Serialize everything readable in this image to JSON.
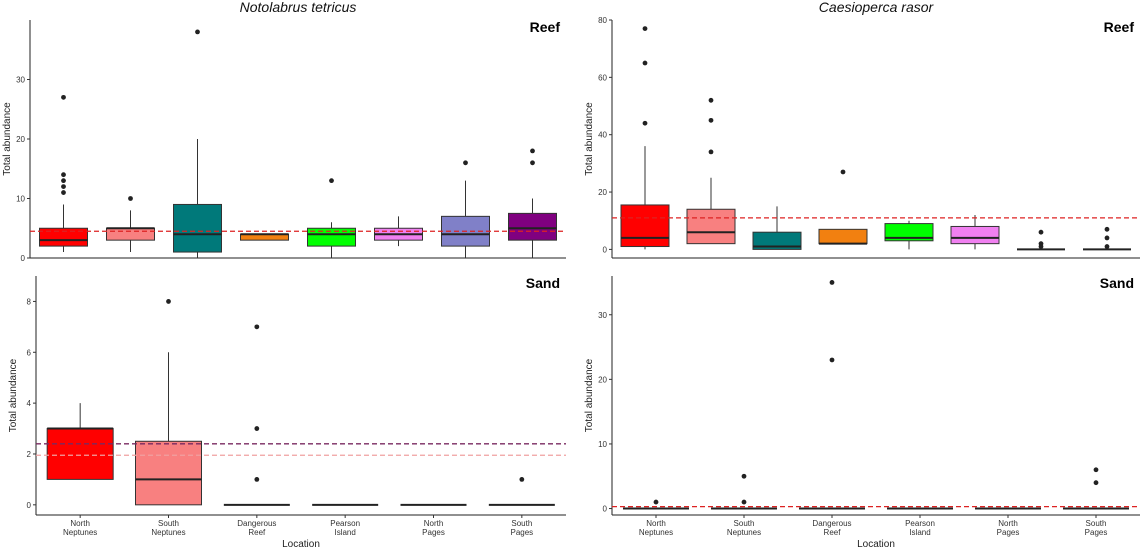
{
  "figure": {
    "left_title": "Notolabrus tetricus",
    "right_title": "Caesioperca rasor",
    "categories": [
      "North\nNeptunes",
      "South\nNeptunes",
      "Dangerous\nReef",
      "Pearson\nIsland",
      "North\nPages",
      "South\nPages"
    ],
    "colors": [
      "#ff0000",
      "#f88080",
      "#00797a",
      "#f28010",
      "#00ff00",
      "#f080f0",
      "#8080c8",
      "#800080"
    ]
  },
  "chart_data": [
    {
      "type": "box",
      "id": "nt-reef",
      "title": "Notolabrus tetricus",
      "habitat": "Reef",
      "ylabel": "Total abundance",
      "xlabel": "",
      "ylim": [
        0,
        40
      ],
      "yticks": [
        0,
        10,
        20,
        30
      ],
      "categories": [],
      "reference_lines": [
        {
          "y": 4.5,
          "color": "#dd2222",
          "style": "dashed"
        }
      ],
      "boxes": [
        {
          "color": "#ff0000",
          "q1": 2,
          "median": 3,
          "q3": 5,
          "lo": 1,
          "hi": 9,
          "outliers": [
            11,
            12,
            13,
            14,
            27
          ]
        },
        {
          "color": "#f88080",
          "q1": 3,
          "median": 5,
          "q3": 5,
          "lo": 1,
          "hi": 8,
          "outliers": [
            10
          ]
        },
        {
          "color": "#00797a",
          "q1": 1,
          "median": 4,
          "q3": 9,
          "lo": 0,
          "hi": 20,
          "outliers": [
            38
          ]
        },
        {
          "color": "#f28010",
          "q1": 3,
          "median": 4,
          "q3": 4,
          "lo": 3,
          "hi": 4,
          "outliers": []
        },
        {
          "color": "#00ff00",
          "q1": 2,
          "median": 4,
          "q3": 5,
          "lo": 0,
          "hi": 6,
          "outliers": [
            13
          ]
        },
        {
          "color": "#f080f0",
          "q1": 3,
          "median": 4,
          "q3": 5,
          "lo": 2,
          "hi": 7,
          "outliers": []
        },
        {
          "color": "#8080c8",
          "q1": 2,
          "median": 4,
          "q3": 7,
          "lo": 0,
          "hi": 13,
          "outliers": [
            16
          ]
        },
        {
          "color": "#800080",
          "q1": 3,
          "median": 5,
          "q3": 7.5,
          "lo": 0,
          "hi": 10,
          "outliers": [
            16,
            18
          ]
        }
      ]
    },
    {
      "type": "box",
      "id": "cr-reef",
      "title": "Caesioperca rasor",
      "habitat": "Reef",
      "ylabel": "Total abundance",
      "xlabel": "",
      "ylim": [
        -3,
        80
      ],
      "yticks": [
        0,
        20,
        40,
        60,
        80
      ],
      "categories": [],
      "reference_lines": [
        {
          "y": 11,
          "color": "#dd2222",
          "style": "dashed"
        }
      ],
      "boxes": [
        {
          "color": "#ff0000",
          "q1": 1,
          "median": 4,
          "q3": 15.5,
          "lo": 0,
          "hi": 36,
          "outliers": [
            44,
            65,
            77
          ]
        },
        {
          "color": "#f88080",
          "q1": 2,
          "median": 6,
          "q3": 14,
          "lo": 2,
          "hi": 25,
          "outliers": [
            34,
            45,
            52
          ]
        },
        {
          "color": "#00797a",
          "q1": 0,
          "median": 1,
          "q3": 6,
          "lo": 0,
          "hi": 15,
          "outliers": []
        },
        {
          "color": "#f28010",
          "q1": 2,
          "median": 2,
          "q3": 7,
          "lo": 2,
          "hi": 7,
          "outliers": [
            27
          ]
        },
        {
          "color": "#00ff00",
          "q1": 3,
          "median": 4,
          "q3": 9,
          "lo": 0,
          "hi": 10,
          "outliers": []
        },
        {
          "color": "#f080f0",
          "q1": 2,
          "median": 4,
          "q3": 8,
          "lo": 0,
          "hi": 12,
          "outliers": []
        },
        {
          "color": "#8080c8",
          "q1": 0,
          "median": 0,
          "q3": 0,
          "lo": 0,
          "hi": 0,
          "outliers": [
            1,
            2,
            6
          ]
        },
        {
          "color": "#800080",
          "q1": 0,
          "median": 0,
          "q3": 0,
          "lo": 0,
          "hi": 0,
          "outliers": [
            1,
            4,
            7
          ]
        }
      ]
    },
    {
      "type": "box",
      "id": "nt-sand",
      "habitat": "Sand",
      "ylabel": "Total abundance",
      "xlabel": "Location",
      "ylim": [
        -0.4,
        9
      ],
      "yticks": [
        0,
        2,
        4,
        6,
        8
      ],
      "categories": [
        "North\nNeptunes",
        "South\nNeptunes",
        "Dangerous\nReef",
        "Pearson\nIsland",
        "North\nPages",
        "South\nPages"
      ],
      "reference_lines": [
        {
          "y": 2.4,
          "color": "#7a2a60",
          "style": "dashed"
        },
        {
          "y": 1.95,
          "color": "#f0a0a0",
          "style": "dashed"
        }
      ],
      "boxes": [
        {
          "color": "#ff0000",
          "q1": 1,
          "median": 3,
          "q3": 3,
          "lo": 1,
          "hi": 4,
          "outliers": []
        },
        {
          "color": "#f88080",
          "q1": 0,
          "median": 1,
          "q3": 2.5,
          "lo": 0,
          "hi": 6,
          "outliers": [
            8
          ]
        },
        {
          "color": "#00797a",
          "q1": 0,
          "median": 0,
          "q3": 0,
          "lo": 0,
          "hi": 0,
          "outliers": [
            1,
            3,
            7
          ]
        },
        {
          "color": "#f28010",
          "q1": 0,
          "median": 0,
          "q3": 0,
          "lo": 0,
          "hi": 0,
          "outliers": []
        },
        {
          "color": "#00ff00",
          "q1": 0,
          "median": 0,
          "q3": 0,
          "lo": 0,
          "hi": 0,
          "outliers": []
        },
        {
          "color": "#f080f0",
          "q1": 0,
          "median": 0,
          "q3": 0,
          "lo": 0,
          "hi": 0,
          "outliers": [
            1
          ]
        }
      ]
    },
    {
      "type": "box",
      "id": "cr-sand",
      "habitat": "Sand",
      "ylabel": "Total abundance",
      "xlabel": "Location",
      "ylim": [
        -1,
        36
      ],
      "yticks": [
        0,
        10,
        20,
        30
      ],
      "categories": [
        "North\nNeptunes",
        "South\nNeptunes",
        "Dangerous\nReef",
        "Pearson\nIsland",
        "North\nPages",
        "South\nPages"
      ],
      "reference_lines": [
        {
          "y": 0.3,
          "color": "#dd2222",
          "style": "dashed"
        }
      ],
      "boxes": [
        {
          "color": "#ff0000",
          "q1": 0,
          "median": 0,
          "q3": 0,
          "lo": 0,
          "hi": 0,
          "outliers": [
            1
          ]
        },
        {
          "color": "#f88080",
          "q1": 0,
          "median": 0,
          "q3": 0,
          "lo": 0,
          "hi": 0,
          "outliers": [
            1,
            5
          ]
        },
        {
          "color": "#00797a",
          "q1": 0,
          "median": 0,
          "q3": 0,
          "lo": 0,
          "hi": 0,
          "outliers": [
            23,
            35
          ]
        },
        {
          "color": "#f28010",
          "q1": 0,
          "median": 0,
          "q3": 0,
          "lo": 0,
          "hi": 0,
          "outliers": []
        },
        {
          "color": "#00ff00",
          "q1": 0,
          "median": 0,
          "q3": 0,
          "lo": 0,
          "hi": 0,
          "outliers": []
        },
        {
          "color": "#f080f0",
          "q1": 0,
          "median": 0,
          "q3": 0,
          "lo": 0,
          "hi": 0,
          "outliers": [
            4,
            6
          ]
        }
      ]
    }
  ]
}
